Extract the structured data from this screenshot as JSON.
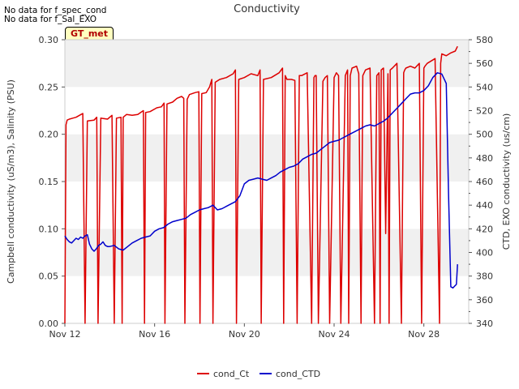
{
  "notes": [
    "No data for f_spec_cond",
    "No data for f_Sal_EXO"
  ],
  "badge": "GT_met",
  "chart_data": {
    "type": "line",
    "title": "Conductivity",
    "ylabel_left": "Campbell conductivity (uS/m3), Salinity (PSU)",
    "ylabel_right": "CTD, EXO conductivity (us/cm)",
    "x_axis": {
      "range": [
        12,
        30
      ],
      "unit": "day of November",
      "ticks": [
        12,
        16,
        20,
        24,
        28
      ],
      "tick_labels": [
        "Nov 12",
        "Nov 16",
        "Nov 20",
        "Nov 24",
        "Nov 28"
      ]
    },
    "ylim_left": [
      0,
      0.3
    ],
    "yticks_left": [
      "0.00",
      "0.05",
      "0.10",
      "0.15",
      "0.20",
      "0.25",
      "0.30"
    ],
    "ylim_right": [
      340,
      580
    ],
    "yticks_right": [
      "340",
      "360",
      "380",
      "400",
      "420",
      "440",
      "460",
      "480",
      "500",
      "520",
      "540",
      "560",
      "580"
    ],
    "grid": "horizontal bands",
    "legend_position": "bottom",
    "series": [
      {
        "name": "cond_Ct",
        "color": "#dd0000",
        "axis": "left",
        "x": [
          12.0,
          12.05,
          12.1,
          12.2,
          12.35,
          12.5,
          12.65,
          12.8,
          12.9,
          13.0,
          13.3,
          13.42,
          13.48,
          13.6,
          13.9,
          14.1,
          14.2,
          14.3,
          14.5,
          14.55,
          14.6,
          14.75,
          15.0,
          15.25,
          15.5,
          15.55,
          15.6,
          15.8,
          16.1,
          16.3,
          16.42,
          16.46,
          16.55,
          16.8,
          17.0,
          17.2,
          17.3,
          17.35,
          17.45,
          17.55,
          17.8,
          17.97,
          18.02,
          18.1,
          18.3,
          18.45,
          18.55,
          18.6,
          18.7,
          18.9,
          19.2,
          19.5,
          19.6,
          19.65,
          19.75,
          20.0,
          20.3,
          20.6,
          20.7,
          20.75,
          20.85,
          21.2,
          21.55,
          21.7,
          21.75,
          21.82,
          21.9,
          22.1,
          22.25,
          22.35,
          22.45,
          22.55,
          22.8,
          23.0,
          23.1,
          23.15,
          23.2,
          23.3,
          23.5,
          23.6,
          23.7,
          23.8,
          24.0,
          24.1,
          24.2,
          24.3,
          24.5,
          24.6,
          24.65,
          24.72,
          24.8,
          25.0,
          25.1,
          25.2,
          25.28,
          25.4,
          25.6,
          25.8,
          25.9,
          26.0,
          26.05,
          26.1,
          26.2,
          26.3,
          26.4,
          26.45,
          26.5,
          26.6,
          26.8,
          27.0,
          27.1,
          27.15,
          27.2,
          27.4,
          27.6,
          27.8,
          27.9,
          28.0,
          28.05,
          28.15,
          28.5,
          28.7,
          28.75,
          28.8,
          29.0,
          29.2,
          29.4,
          29.5
        ],
        "values": [
          0.0,
          0.21,
          0.215,
          0.216,
          0.217,
          0.218,
          0.22,
          0.222,
          0.0,
          0.214,
          0.215,
          0.218,
          0.0,
          0.217,
          0.216,
          0.22,
          0.0,
          0.217,
          0.218,
          0.0,
          0.218,
          0.221,
          0.22,
          0.221,
          0.225,
          0.0,
          0.223,
          0.224,
          0.228,
          0.229,
          0.233,
          0.0,
          0.232,
          0.234,
          0.238,
          0.24,
          0.238,
          0.0,
          0.237,
          0.242,
          0.244,
          0.245,
          0.0,
          0.243,
          0.244,
          0.25,
          0.258,
          0.0,
          0.255,
          0.258,
          0.26,
          0.264,
          0.268,
          0.0,
          0.258,
          0.26,
          0.264,
          0.262,
          0.268,
          0.0,
          0.258,
          0.26,
          0.265,
          0.27,
          0.0,
          0.262,
          0.258,
          0.258,
          0.257,
          0.0,
          0.262,
          0.262,
          0.265,
          0.0,
          0.26,
          0.262,
          0.262,
          0.0,
          0.256,
          0.26,
          0.262,
          0.0,
          0.26,
          0.265,
          0.262,
          0.0,
          0.262,
          0.268,
          0.0,
          0.262,
          0.27,
          0.272,
          0.264,
          0.0,
          0.262,
          0.268,
          0.27,
          0.0,
          0.262,
          0.265,
          0.0,
          0.268,
          0.27,
          0.095,
          0.264,
          0.0,
          0.268,
          0.27,
          0.275,
          0.0,
          0.265,
          0.268,
          0.27,
          0.272,
          0.27,
          0.275,
          0.0,
          0.27,
          0.272,
          0.275,
          0.28,
          0.0,
          0.275,
          0.285,
          0.283,
          0.286,
          0.288,
          0.293
        ]
      },
      {
        "name": "cond_CTD",
        "color": "#0000cc",
        "axis": "right",
        "x": [
          12.0,
          12.1,
          12.2,
          12.3,
          12.4,
          12.5,
          12.6,
          12.7,
          12.8,
          12.9,
          13.0,
          13.1,
          13.2,
          13.3,
          13.4,
          13.5,
          13.6,
          13.7,
          13.8,
          13.9,
          14.0,
          14.2,
          14.4,
          14.6,
          14.8,
          15.0,
          15.2,
          15.4,
          15.6,
          15.8,
          16.0,
          16.2,
          16.4,
          16.6,
          16.8,
          17.0,
          17.2,
          17.4,
          17.6,
          17.8,
          18.0,
          18.2,
          18.4,
          18.6,
          18.8,
          19.0,
          19.2,
          19.4,
          19.6,
          19.8,
          20.0,
          20.2,
          20.4,
          20.6,
          20.8,
          21.0,
          21.2,
          21.4,
          21.6,
          21.8,
          22.0,
          22.2,
          22.4,
          22.6,
          22.8,
          23.0,
          23.2,
          23.4,
          23.6,
          23.8,
          24.0,
          24.2,
          24.4,
          24.6,
          24.8,
          25.0,
          25.2,
          25.4,
          25.6,
          25.8,
          26.0,
          26.2,
          26.4,
          26.6,
          26.8,
          27.0,
          27.2,
          27.4,
          27.6,
          27.8,
          28.0,
          28.2,
          28.4,
          28.6,
          28.8,
          29.0,
          29.1,
          29.2,
          29.3,
          29.4,
          29.45,
          29.5
        ],
        "values": [
          414,
          411,
          409,
          408,
          410,
          412,
          411,
          413,
          412,
          414,
          415,
          407,
          403,
          401,
          403,
          406,
          407,
          409,
          406,
          405,
          405,
          406,
          403,
          402,
          405,
          408,
          410,
          412,
          413,
          414,
          418,
          420,
          421,
          424,
          426,
          427,
          428,
          429,
          432,
          434,
          436,
          437,
          438,
          440,
          436,
          437,
          439,
          441,
          443,
          448,
          458,
          461,
          462,
          463,
          462,
          461,
          463,
          465,
          468,
          470,
          472,
          473,
          475,
          479,
          481,
          483,
          484,
          487,
          490,
          493,
          494,
          495,
          497,
          499,
          501,
          503,
          505,
          507,
          508,
          507,
          509,
          511,
          514,
          518,
          522,
          526,
          530,
          534,
          535,
          535,
          537,
          541,
          548,
          552,
          551,
          543,
          450,
          371,
          370,
          372,
          373,
          390
        ]
      }
    ]
  }
}
